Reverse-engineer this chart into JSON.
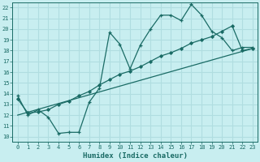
{
  "xlabel": "Humidex (Indice chaleur)",
  "xlim": [
    -0.5,
    23.5
  ],
  "ylim": [
    9.5,
    22.5
  ],
  "xticks": [
    0,
    1,
    2,
    3,
    4,
    5,
    6,
    7,
    8,
    9,
    10,
    11,
    12,
    13,
    14,
    15,
    16,
    17,
    18,
    19,
    20,
    21,
    22,
    23
  ],
  "yticks": [
    10,
    11,
    12,
    13,
    14,
    15,
    16,
    17,
    18,
    19,
    20,
    21,
    22
  ],
  "bg_color": "#c8eef0",
  "line_color": "#1a6b65",
  "grid_color": "#b0dde0",
  "line1_x": [
    0,
    1,
    2,
    3,
    4,
    5,
    6,
    7,
    8,
    9,
    10,
    11,
    12,
    13,
    14,
    15,
    16,
    17,
    18,
    19,
    20,
    21,
    22,
    23
  ],
  "line1_y": [
    13.8,
    12.0,
    12.5,
    11.8,
    10.3,
    10.4,
    10.4,
    13.2,
    14.5,
    19.7,
    18.6,
    16.3,
    18.5,
    20.0,
    21.3,
    21.3,
    20.8,
    22.3,
    21.3,
    19.8,
    19.2,
    18.0,
    18.3,
    18.3
  ],
  "line2_x": [
    0,
    1,
    2,
    3,
    4,
    5,
    6,
    7,
    8,
    9,
    10,
    11,
    12,
    13,
    14,
    15,
    16,
    17,
    18,
    19,
    20,
    21,
    22,
    23
  ],
  "line2_y": [
    13.5,
    12.2,
    12.3,
    12.5,
    13.0,
    13.3,
    13.8,
    14.2,
    14.8,
    15.3,
    15.8,
    16.1,
    16.5,
    17.0,
    17.5,
    17.8,
    18.2,
    18.7,
    19.0,
    19.3,
    19.8,
    20.3,
    18.0,
    18.2
  ],
  "line3_x": [
    0,
    23
  ],
  "line3_y": [
    12.0,
    18.2
  ]
}
